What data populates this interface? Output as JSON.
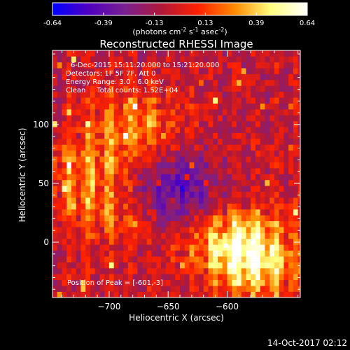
{
  "colorbar": {
    "tick_labels": [
      "-0.64",
      "-0.39",
      "-0.13",
      "0.13",
      "0.39",
      "0.64"
    ],
    "range": [
      -0.64,
      0.64
    ],
    "unit_label_main": "(photons cm",
    "unit_sup_1": "-2",
    "unit_mid": " s",
    "unit_sup_2": "-1",
    "unit_end_main": " asec",
    "unit_sup_3": "-2",
    "unit_close": ")",
    "colormap": [
      "#0000ff",
      "#5000c0",
      "#7a2090",
      "#b01838",
      "#ff2000",
      "#ff8a00",
      "#ffff80",
      "#ffffff"
    ]
  },
  "chart_data": {
    "type": "heatmap",
    "title": "Reconstructed RHESSI Image",
    "xlabel": "Heliocentric X (arcsec)",
    "ylabel": "Heliocentric Y (arcsec)",
    "xlim": [
      -748,
      -538
    ],
    "ylim": [
      -47,
      163
    ],
    "x_ticks": [
      -700,
      -650,
      -600
    ],
    "x_tick_labels": [
      "−700",
      "−650",
      "−600"
    ],
    "y_ticks": [
      0,
      50,
      100
    ],
    "y_tick_labels": [
      "0",
      "50",
      "100"
    ],
    "value_range": [
      -0.64,
      0.64
    ],
    "features": [
      {
        "x": -680,
        "y": 100,
        "value": 0.3
      },
      {
        "x": -720,
        "y": 60,
        "value": 0.25
      },
      {
        "x": -700,
        "y": 25,
        "value": 0.2
      },
      {
        "x": -590,
        "y": 0,
        "value": 0.45
      },
      {
        "x": -575,
        "y": -20,
        "value": 0.35
      },
      {
        "x": -645,
        "y": 45,
        "value": -0.35
      }
    ],
    "peak": {
      "x": -601,
      "y": -3
    },
    "annotations": {
      "time": "6-Dec-2015 15:11:20.000 to 15:21:20.000",
      "detectors": "Detectors: 1F 5F 7F, Att 0",
      "energy": "Energy Range: 3.0 - 6.0 keV",
      "clean": "Clean     Total counts: 1.52E+04",
      "peak": "Position of Peak = [-601,-3]"
    }
  },
  "footer": {
    "timestamp": "14-Oct-2017 02:12"
  }
}
